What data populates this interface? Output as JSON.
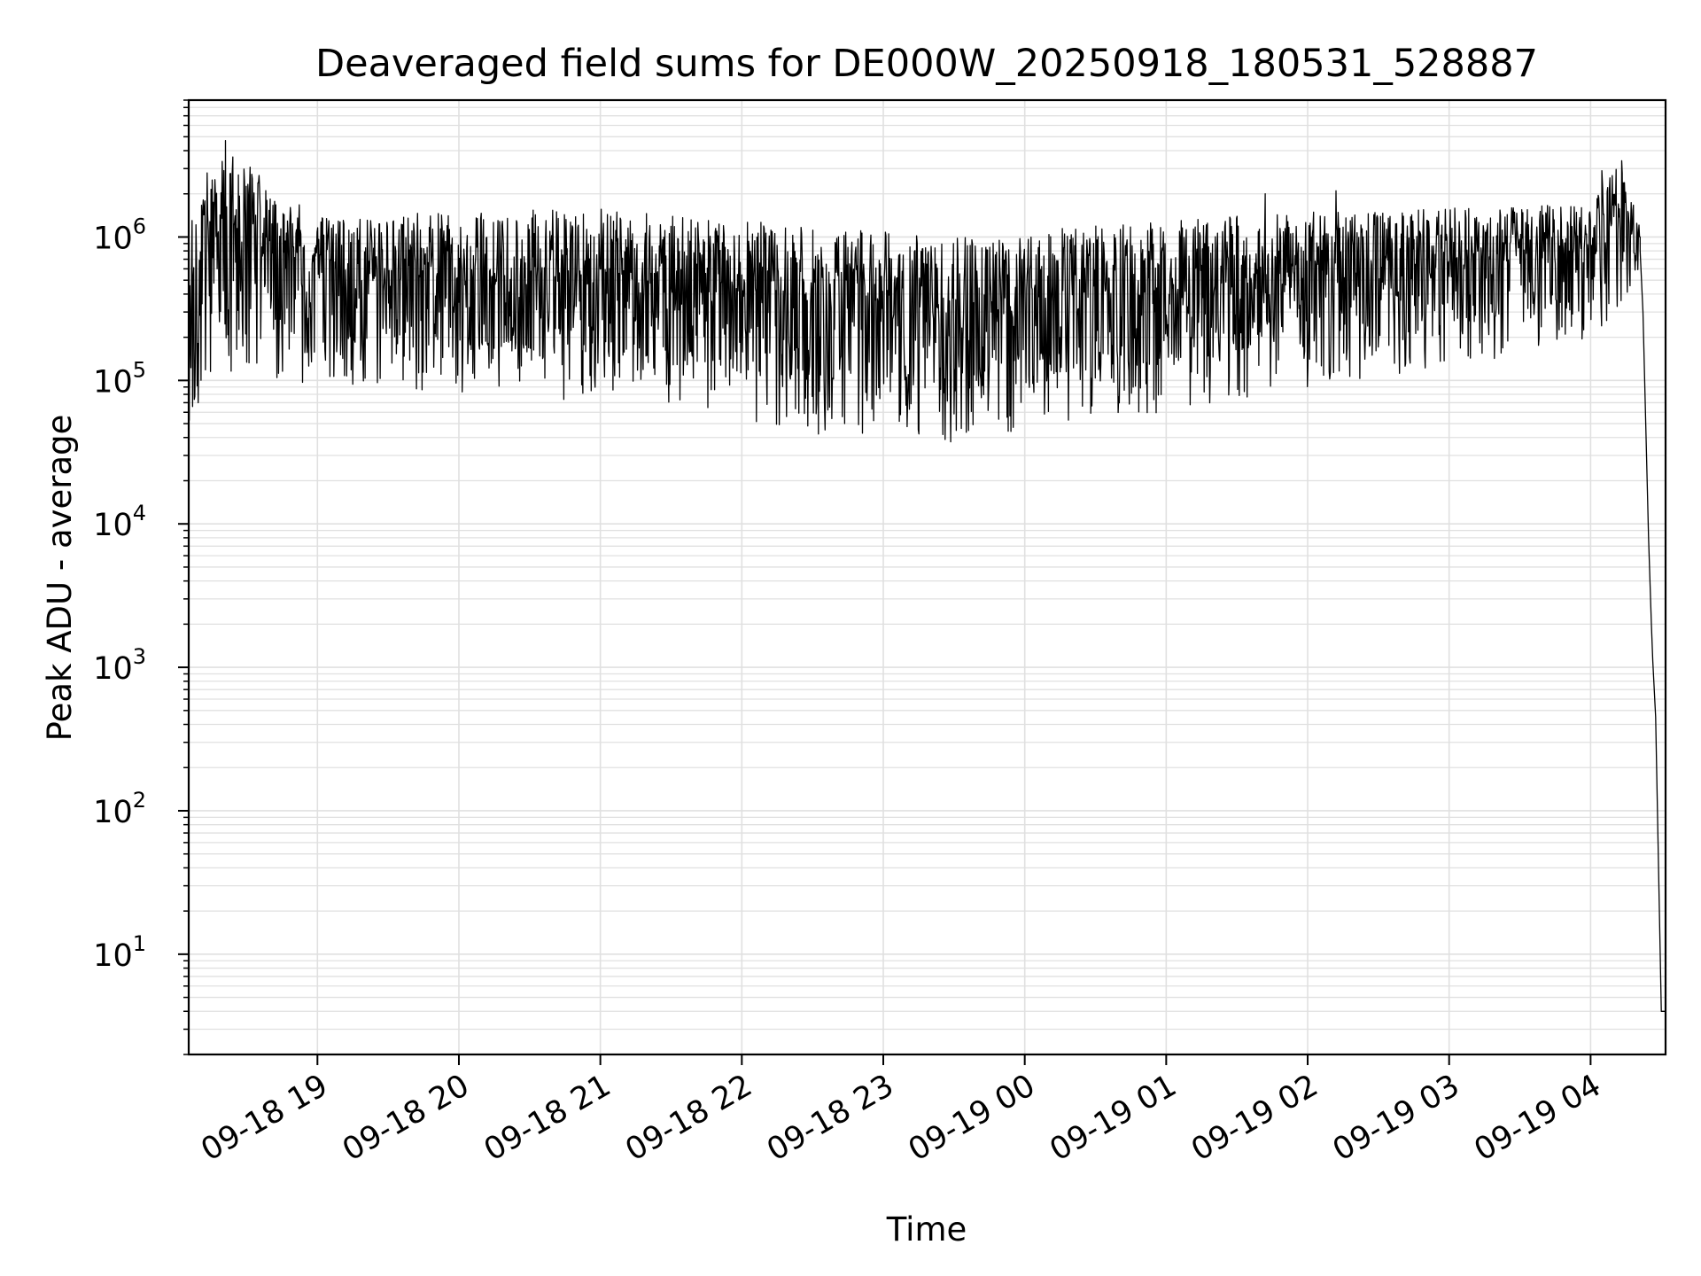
{
  "chart_data": {
    "type": "line",
    "title": "Deaveraged field sums for DE000W_20250918_180531_528887",
    "xlabel": "Time",
    "ylabel": "Peak ADU - average",
    "yscale": "log",
    "ylim": [
      2,
      9000000
    ],
    "xlim_hours": [
      18.09,
      28.53
    ],
    "grid": true,
    "x_ticks": [
      {
        "hour": 19,
        "label": "09-18 19"
      },
      {
        "hour": 20,
        "label": "09-18 20"
      },
      {
        "hour": 21,
        "label": "09-18 21"
      },
      {
        "hour": 22,
        "label": "09-18 22"
      },
      {
        "hour": 23,
        "label": "09-18 23"
      },
      {
        "hour": 24,
        "label": "09-19 00"
      },
      {
        "hour": 25,
        "label": "09-19 01"
      },
      {
        "hour": 26,
        "label": "09-19 02"
      },
      {
        "hour": 27,
        "label": "09-19 03"
      },
      {
        "hour": 28,
        "label": "09-19 04"
      }
    ],
    "y_ticks": [
      {
        "value": 10,
        "base": "10",
        "exp": "1"
      },
      {
        "value": 100,
        "base": "10",
        "exp": "2"
      },
      {
        "value": 1000,
        "base": "10",
        "exp": "3"
      },
      {
        "value": 10000,
        "base": "10",
        "exp": "4"
      },
      {
        "value": 100000,
        "base": "10",
        "exp": "5"
      },
      {
        "value": 1000000,
        "base": "10",
        "exp": "6"
      }
    ],
    "series": [
      {
        "name": "deaveraged field sum",
        "color": "#000000",
        "envelope": [
          {
            "hour": 18.09,
            "low": 50000,
            "high": 1500000
          },
          {
            "hour": 18.3,
            "low": 120000,
            "high": 4700000
          },
          {
            "hour": 19.0,
            "low": 90000,
            "high": 1400000
          },
          {
            "hour": 20.0,
            "low": 80000,
            "high": 1500000
          },
          {
            "hour": 21.0,
            "low": 70000,
            "high": 1600000
          },
          {
            "hour": 21.5,
            "low": 60000,
            "high": 1400000
          },
          {
            "hour": 22.0,
            "low": 50000,
            "high": 1300000
          },
          {
            "hour": 22.5,
            "low": 42000,
            "high": 1200000
          },
          {
            "hour": 23.0,
            "low": 38000,
            "high": 1100000
          },
          {
            "hour": 23.5,
            "low": 37000,
            "high": 1000000
          },
          {
            "hour": 24.0,
            "low": 40000,
            "high": 1000000
          },
          {
            "hour": 24.3,
            "low": 50000,
            "high": 1200000
          },
          {
            "hour": 25.0,
            "low": 60000,
            "high": 1300000
          },
          {
            "hour": 26.0,
            "low": 90000,
            "high": 1500000
          },
          {
            "hour": 27.0,
            "low": 120000,
            "high": 1600000
          },
          {
            "hour": 28.0,
            "low": 200000,
            "high": 1700000
          },
          {
            "hour": 28.2,
            "low": 300000,
            "high": 3400000
          },
          {
            "hour": 28.35,
            "low": 500000,
            "high": 1300000
          }
        ],
        "tail": [
          {
            "hour": 28.35,
            "value": 800000
          },
          {
            "hour": 28.37,
            "value": 300000
          },
          {
            "hour": 28.41,
            "value": 8000
          },
          {
            "hour": 28.43,
            "value": 2000
          },
          {
            "hour": 28.44,
            "value": 1100
          },
          {
            "hour": 28.46,
            "value": 450
          },
          {
            "hour": 28.5,
            "value": 4
          },
          {
            "hour": 28.53,
            "value": 4
          }
        ],
        "spikes": [
          {
            "hour": 18.35,
            "value": 4700000
          },
          {
            "hour": 18.22,
            "value": 2800000
          },
          {
            "hour": 28.22,
            "value": 3400000
          },
          {
            "hour": 28.08,
            "value": 2900000
          },
          {
            "hour": 26.2,
            "value": 2100000
          },
          {
            "hour": 25.7,
            "value": 2000000
          }
        ]
      }
    ]
  }
}
